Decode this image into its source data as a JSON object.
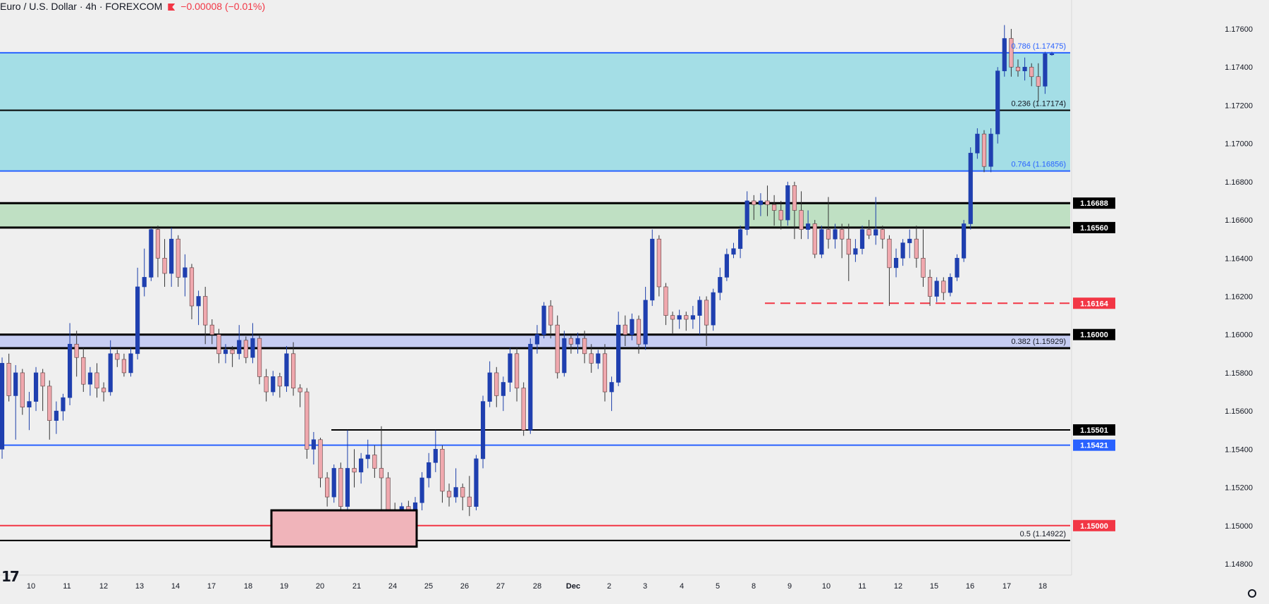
{
  "header": {
    "symbol": "Euro / U.S. Dollar · 4h · FOREXCOM",
    "change": "−0.00008 (−0.01%)"
  },
  "chart_data": {
    "type": "candlestick",
    "symbol": "Euro / U.S. Dollar",
    "interval": "4h",
    "broker": "FOREXCOM",
    "ylim": [
      1.1475,
      1.1785
    ],
    "y_ticks": [
      "1.17600",
      "1.17400",
      "1.17200",
      "1.17000",
      "1.16800",
      "1.16600",
      "1.16400",
      "1.16200",
      "1.16000",
      "1.15800",
      "1.15600",
      "1.15400",
      "1.15200",
      "1.15000",
      "1.14800"
    ],
    "x_ticks": [
      "10",
      "11",
      "12",
      "13",
      "14",
      "17",
      "18",
      "19",
      "20",
      "21",
      "24",
      "25",
      "26",
      "27",
      "28",
      "Dec",
      "2",
      "3",
      "4",
      "5",
      "8",
      "9",
      "10",
      "11",
      "12",
      "15",
      "16",
      "17",
      "18"
    ],
    "zones": [
      {
        "name": "upper-fib-zone",
        "from": 1.16856,
        "to": 1.17475,
        "color": "#a4dee6"
      },
      {
        "name": "support-zone-green",
        "from": 1.1656,
        "to": 1.16688,
        "color": "#bfe0c3"
      },
      {
        "name": "zone-116",
        "from": 1.15929,
        "to": 1.16,
        "color": "#c6cdf2"
      }
    ],
    "levels": [
      {
        "value": 1.17475,
        "label": "0.786 (1.17475)",
        "color": "#2962ff",
        "style": "solid",
        "axis_label": ""
      },
      {
        "value": 1.17174,
        "label": "0.236 (1.17174)",
        "color": "#000000",
        "style": "solid",
        "axis_label": ""
      },
      {
        "value": 1.16856,
        "label": "0.764 (1.16856)",
        "color": "#2962ff",
        "style": "solid",
        "axis_label": ""
      },
      {
        "value": 1.16688,
        "label": "",
        "color": "#000000",
        "style": "bold",
        "axis_label": "1.16688"
      },
      {
        "value": 1.1656,
        "label": "",
        "color": "#000000",
        "style": "bold",
        "axis_label": "1.16560"
      },
      {
        "value": 1.16164,
        "label": "",
        "color": "#f23645",
        "style": "dashed",
        "axis_label": "1.16164"
      },
      {
        "value": 1.16,
        "label": "",
        "color": "#000000",
        "style": "bold",
        "axis_label": "1.16000"
      },
      {
        "value": 1.15929,
        "label": "0.382 (1.15929)",
        "color": "#000000",
        "style": "bold",
        "axis_label": ""
      },
      {
        "value": 1.15501,
        "label": "",
        "color": "#000000",
        "style": "solid",
        "axis_label": "1.15501"
      },
      {
        "value": 1.15421,
        "label": "",
        "color": "#2962ff",
        "style": "solid",
        "axis_label": "1.15421"
      },
      {
        "value": 1.15,
        "label": "",
        "color": "#f23645",
        "style": "solid",
        "axis_label": "1.15000"
      },
      {
        "value": 1.14922,
        "label": "0.5 (1.14922)",
        "color": "#000000",
        "style": "solid",
        "axis_label": ""
      }
    ],
    "box": {
      "from": 1.1489,
      "to": 1.1508,
      "fill": "#f0b4ba",
      "border": "#000000"
    },
    "candles": [
      [
        1.154,
        1.1585,
        1.1535,
        1.1588
      ],
      [
        1.1585,
        1.1568,
        1.1565,
        1.159
      ],
      [
        1.1568,
        1.158,
        1.1545,
        1.1584
      ],
      [
        1.158,
        1.1562,
        1.1558,
        1.1582
      ],
      [
        1.1562,
        1.1565,
        1.155,
        1.157
      ],
      [
        1.1565,
        1.158,
        1.156,
        1.1583
      ],
      [
        1.158,
        1.1573,
        1.156,
        1.1582
      ],
      [
        1.1573,
        1.1555,
        1.1545,
        1.1576
      ],
      [
        1.1555,
        1.156,
        1.1548,
        1.1565
      ],
      [
        1.156,
        1.1567,
        1.1555,
        1.1569
      ],
      [
        1.1567,
        1.1595,
        1.1563,
        1.1606
      ],
      [
        1.1595,
        1.1588,
        1.1578,
        1.1602
      ],
      [
        1.1588,
        1.1574,
        1.157,
        1.1593
      ],
      [
        1.1574,
        1.158,
        1.1568,
        1.1583
      ],
      [
        1.158,
        1.1572,
        1.1567,
        1.1585
      ],
      [
        1.1572,
        1.157,
        1.1565,
        1.1575
      ],
      [
        1.157,
        1.159,
        1.1568,
        1.1597
      ],
      [
        1.159,
        1.1587,
        1.1583,
        1.1592
      ],
      [
        1.1587,
        1.158,
        1.1578,
        1.159
      ],
      [
        1.158,
        1.159,
        1.1578,
        1.1593
      ],
      [
        1.159,
        1.1625,
        1.1587,
        1.1635
      ],
      [
        1.1625,
        1.163,
        1.162,
        1.1645
      ],
      [
        1.163,
        1.1655,
        1.1628,
        1.1656
      ],
      [
        1.1655,
        1.164,
        1.163,
        1.1657
      ],
      [
        1.164,
        1.1632,
        1.1625,
        1.165
      ],
      [
        1.1632,
        1.165,
        1.1625,
        1.1656
      ],
      [
        1.165,
        1.163,
        1.1625,
        1.1652
      ],
      [
        1.163,
        1.1635,
        1.162,
        1.1642
      ],
      [
        1.1635,
        1.1615,
        1.1608,
        1.1637
      ],
      [
        1.1615,
        1.162,
        1.1605,
        1.1623
      ],
      [
        1.162,
        1.1605,
        1.1595,
        1.1625
      ],
      [
        1.1605,
        1.16,
        1.1595,
        1.1608
      ],
      [
        1.16,
        1.159,
        1.1585,
        1.1603
      ],
      [
        1.159,
        1.1592,
        1.1585,
        1.1595
      ],
      [
        1.1592,
        1.159,
        1.1583,
        1.1594
      ],
      [
        1.159,
        1.1597,
        1.1587,
        1.1605
      ],
      [
        1.1597,
        1.1588,
        1.1585,
        1.1599
      ],
      [
        1.1588,
        1.1598,
        1.1585,
        1.1606
      ],
      [
        1.1598,
        1.1578,
        1.1574,
        1.16
      ],
      [
        1.1578,
        1.157,
        1.1565,
        1.1582
      ],
      [
        1.157,
        1.1578,
        1.1568,
        1.1581
      ],
      [
        1.1578,
        1.1573,
        1.1567,
        1.158
      ],
      [
        1.1573,
        1.159,
        1.157,
        1.1594
      ],
      [
        1.159,
        1.1572,
        1.1568,
        1.1596
      ],
      [
        1.1572,
        1.157,
        1.1562,
        1.1574
      ],
      [
        1.157,
        1.154,
        1.1535,
        1.1572
      ],
      [
        1.154,
        1.1545,
        1.1532,
        1.1549
      ],
      [
        1.1545,
        1.1525,
        1.152,
        1.1546
      ],
      [
        1.1525,
        1.1515,
        1.151,
        1.1528
      ],
      [
        1.1515,
        1.153,
        1.1512,
        1.1532
      ],
      [
        1.153,
        1.151,
        1.1503,
        1.1533
      ],
      [
        1.151,
        1.153,
        1.1505,
        1.155
      ],
      [
        1.153,
        1.1528,
        1.152,
        1.154
      ],
      [
        1.1528,
        1.1535,
        1.1522,
        1.1538
      ],
      [
        1.1535,
        1.1537,
        1.153,
        1.1545
      ],
      [
        1.1537,
        1.153,
        1.1525,
        1.1542
      ],
      [
        1.153,
        1.1525,
        1.1508,
        1.1552
      ],
      [
        1.1525,
        1.1508,
        1.15,
        1.1528
      ],
      [
        1.1508,
        1.1495,
        1.1492,
        1.1512
      ],
      [
        1.1495,
        1.151,
        1.1493,
        1.1512
      ],
      [
        1.151,
        1.1505,
        1.15,
        1.1513
      ],
      [
        1.1505,
        1.1512,
        1.1502,
        1.1515
      ],
      [
        1.1512,
        1.1525,
        1.1508,
        1.1528
      ],
      [
        1.1525,
        1.1533,
        1.152,
        1.1538
      ],
      [
        1.1533,
        1.154,
        1.1528,
        1.155
      ],
      [
        1.154,
        1.1518,
        1.1512,
        1.1542
      ],
      [
        1.1518,
        1.1515,
        1.151,
        1.1522
      ],
      [
        1.1515,
        1.152,
        1.1512,
        1.153
      ],
      [
        1.152,
        1.1515,
        1.1508,
        1.1522
      ],
      [
        1.1515,
        1.151,
        1.1505,
        1.1526
      ],
      [
        1.151,
        1.1535,
        1.1508,
        1.1537
      ],
      [
        1.1535,
        1.1565,
        1.153,
        1.1568
      ],
      [
        1.1565,
        1.158,
        1.1562,
        1.1586
      ],
      [
        1.158,
        1.1568,
        1.1562,
        1.1583
      ],
      [
        1.1568,
        1.1575,
        1.156,
        1.1578
      ],
      [
        1.1575,
        1.159,
        1.157,
        1.1593
      ],
      [
        1.159,
        1.1572,
        1.1565,
        1.1593
      ],
      [
        1.1572,
        1.155,
        1.1547,
        1.1575
      ],
      [
        1.155,
        1.1595,
        1.1548,
        1.1598
      ],
      [
        1.1595,
        1.16,
        1.159,
        1.1605
      ],
      [
        1.16,
        1.1615,
        1.1598,
        1.1617
      ],
      [
        1.1615,
        1.1605,
        1.1598,
        1.1618
      ],
      [
        1.1605,
        1.158,
        1.1577,
        1.161
      ],
      [
        1.158,
        1.1598,
        1.1578,
        1.1602
      ],
      [
        1.1598,
        1.1595,
        1.159,
        1.16
      ],
      [
        1.1595,
        1.1598,
        1.159,
        1.1601
      ],
      [
        1.1598,
        1.159,
        1.1585,
        1.1602
      ],
      [
        1.159,
        1.1585,
        1.158,
        1.1595
      ],
      [
        1.1585,
        1.159,
        1.1582,
        1.1592
      ],
      [
        1.159,
        1.157,
        1.1565,
        1.1595
      ],
      [
        1.157,
        1.1575,
        1.156,
        1.1578
      ],
      [
        1.1575,
        1.1605,
        1.1573,
        1.1612
      ],
      [
        1.1605,
        1.16,
        1.1594,
        1.161
      ],
      [
        1.16,
        1.1608,
        1.1597,
        1.1611
      ],
      [
        1.1608,
        1.1595,
        1.159,
        1.161
      ],
      [
        1.1595,
        1.1618,
        1.1592,
        1.1625
      ],
      [
        1.1618,
        1.165,
        1.1615,
        1.1655
      ],
      [
        1.165,
        1.1625,
        1.162,
        1.1652
      ],
      [
        1.1625,
        1.161,
        1.1605,
        1.1627
      ],
      [
        1.161,
        1.1608,
        1.16,
        1.1612
      ],
      [
        1.1608,
        1.161,
        1.1603,
        1.1613
      ],
      [
        1.161,
        1.1608,
        1.1602,
        1.1612
      ],
      [
        1.1608,
        1.161,
        1.1603,
        1.1615
      ],
      [
        1.161,
        1.1618,
        1.16,
        1.162
      ],
      [
        1.1618,
        1.1605,
        1.1594,
        1.162
      ],
      [
        1.1605,
        1.1622,
        1.1602,
        1.1624
      ],
      [
        1.1622,
        1.163,
        1.1618,
        1.1635
      ],
      [
        1.163,
        1.1642,
        1.1628,
        1.1645
      ],
      [
        1.1642,
        1.1645,
        1.164,
        1.1648
      ],
      [
        1.1645,
        1.1655,
        1.164,
        1.1657
      ],
      [
        1.1655,
        1.167,
        1.1652,
        1.1675
      ],
      [
        1.167,
        1.1668,
        1.166,
        1.1673
      ],
      [
        1.1668,
        1.167,
        1.1662,
        1.1674
      ],
      [
        1.167,
        1.1668,
        1.1662,
        1.1678
      ],
      [
        1.1668,
        1.1665,
        1.1657,
        1.1673
      ],
      [
        1.1665,
        1.166,
        1.1655,
        1.167
      ],
      [
        1.166,
        1.1678,
        1.1657,
        1.168
      ],
      [
        1.1678,
        1.1665,
        1.165,
        1.168
      ],
      [
        1.1665,
        1.1655,
        1.165,
        1.1675
      ],
      [
        1.1655,
        1.1658,
        1.165,
        1.1665
      ],
      [
        1.1658,
        1.1642,
        1.164,
        1.166
      ],
      [
        1.1642,
        1.1655,
        1.164,
        1.1657
      ],
      [
        1.1655,
        1.165,
        1.1645,
        1.1672
      ],
      [
        1.165,
        1.1655,
        1.1645,
        1.1658
      ],
      [
        1.1655,
        1.165,
        1.164,
        1.1658
      ],
      [
        1.165,
        1.1642,
        1.1628,
        1.1658
      ],
      [
        1.1642,
        1.1645,
        1.1638,
        1.165
      ],
      [
        1.1645,
        1.1655,
        1.1642,
        1.1657
      ],
      [
        1.1655,
        1.1652,
        1.165,
        1.166
      ],
      [
        1.1652,
        1.1655,
        1.1647,
        1.1672
      ],
      [
        1.1655,
        1.165,
        1.1645,
        1.1657
      ],
      [
        1.165,
        1.1635,
        1.1615,
        1.1652
      ],
      [
        1.1635,
        1.164,
        1.163,
        1.1645
      ],
      [
        1.164,
        1.1648,
        1.1636,
        1.165
      ],
      [
        1.1648,
        1.165,
        1.164,
        1.1655
      ],
      [
        1.165,
        1.164,
        1.1635,
        1.1657
      ],
      [
        1.164,
        1.163,
        1.1625,
        1.1655
      ],
      [
        1.163,
        1.162,
        1.1615,
        1.1634
      ],
      [
        1.162,
        1.1628,
        1.1617,
        1.163
      ],
      [
        1.1628,
        1.1622,
        1.1618,
        1.163
      ],
      [
        1.1622,
        1.163,
        1.162,
        1.1632
      ],
      [
        1.163,
        1.164,
        1.1628,
        1.1642
      ],
      [
        1.164,
        1.1658,
        1.1638,
        1.166
      ],
      [
        1.1658,
        1.1695,
        1.1655,
        1.1698
      ],
      [
        1.1695,
        1.1705,
        1.1692,
        1.1708
      ],
      [
        1.1705,
        1.1688,
        1.1685,
        1.1707
      ],
      [
        1.1688,
        1.1705,
        1.1685,
        1.1708
      ],
      [
        1.1705,
        1.1738,
        1.17,
        1.174
      ],
      [
        1.1738,
        1.1755,
        1.1735,
        1.1762
      ],
      [
        1.1755,
        1.174,
        1.1735,
        1.176
      ],
      [
        1.174,
        1.1738,
        1.1735,
        1.1744
      ],
      [
        1.1738,
        1.174,
        1.1733,
        1.1745
      ],
      [
        1.174,
        1.1735,
        1.173,
        1.1742
      ],
      [
        1.1735,
        1.173,
        1.1722,
        1.1742
      ],
      [
        1.173,
        1.1747,
        1.1726,
        1.1748
      ],
      [
        1.1747,
        1.1747,
        1.1746,
        1.1748
      ]
    ]
  }
}
